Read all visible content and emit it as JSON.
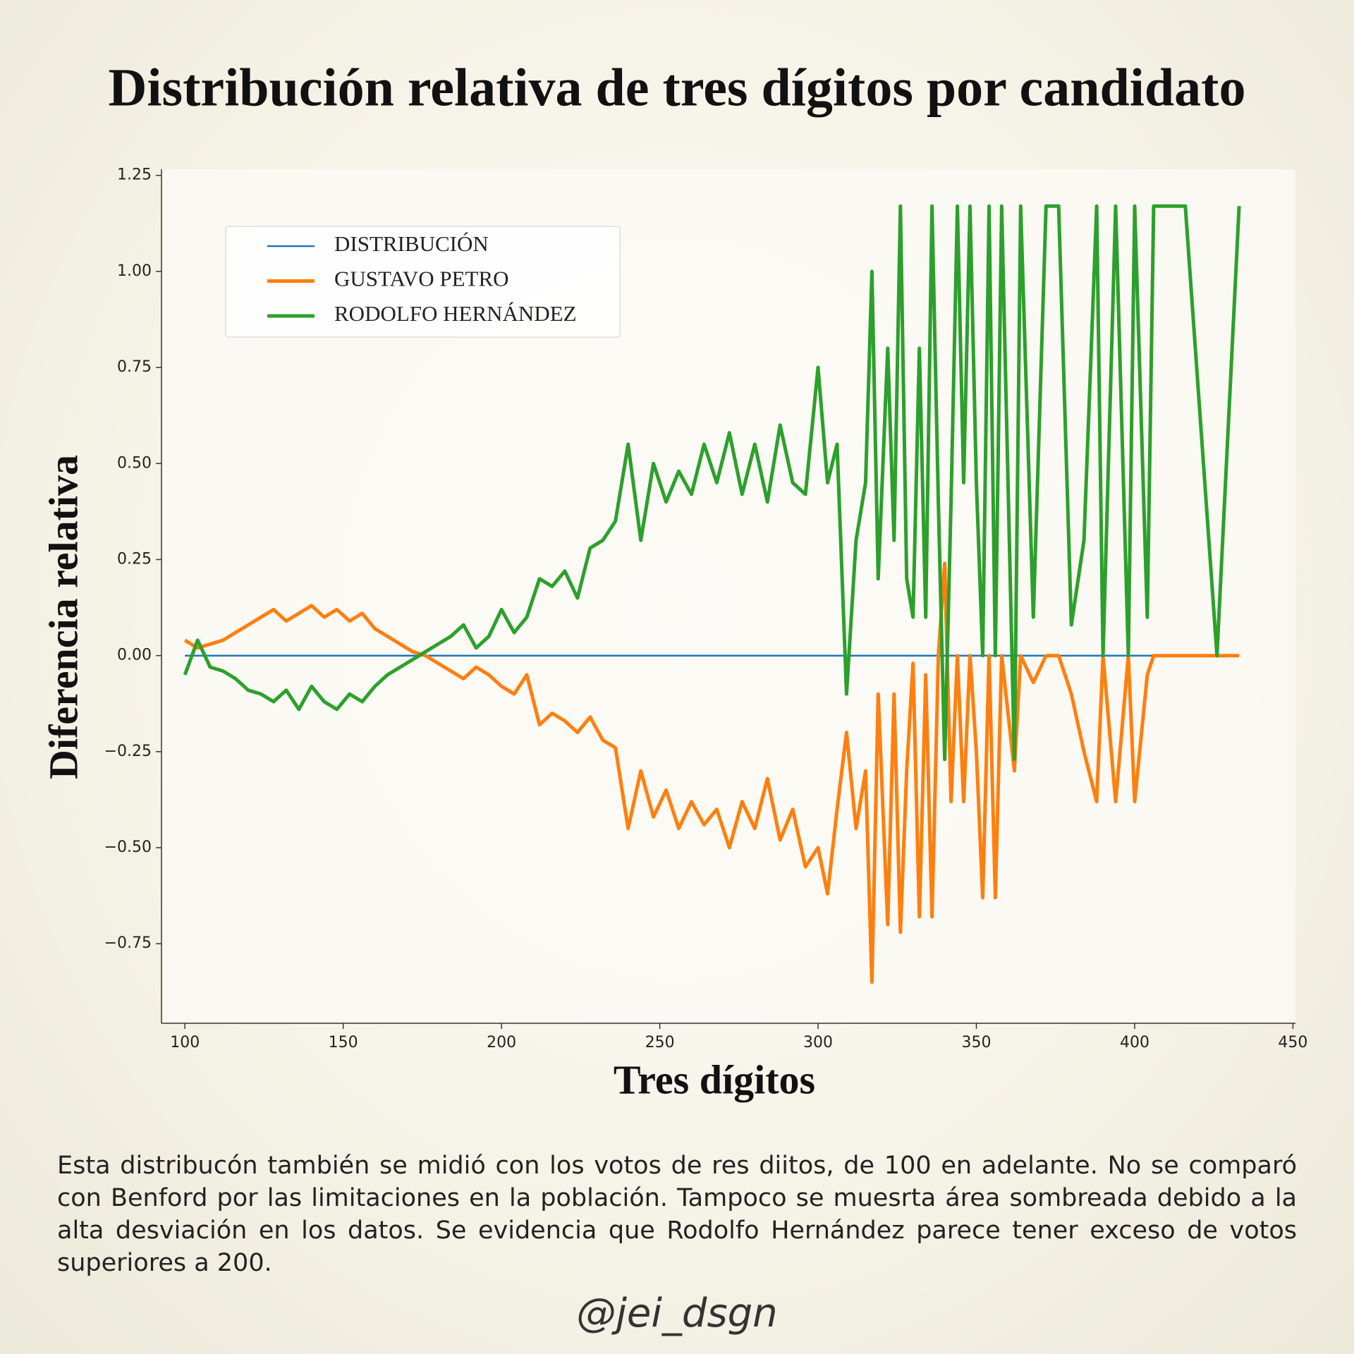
{
  "chart_data": {
    "type": "line",
    "title": "Distribución relativa de tres dígitos por candidato",
    "xlabel": "Tres dígitos",
    "ylabel": "Diferencia relativa",
    "x": [
      100,
      104,
      108,
      112,
      116,
      120,
      124,
      128,
      132,
      136,
      140,
      144,
      148,
      152,
      156,
      160,
      164,
      168,
      172,
      176,
      180,
      184,
      188,
      192,
      196,
      200,
      204,
      208,
      212,
      216,
      220,
      224,
      228,
      232,
      236,
      240,
      244,
      248,
      252,
      256,
      260,
      264,
      268,
      272,
      276,
      280,
      284,
      288,
      292,
      296,
      300,
      303,
      306,
      309,
      312,
      315,
      317,
      319,
      322,
      324,
      326,
      328,
      330,
      332,
      334,
      336,
      338,
      340,
      342,
      344,
      346,
      348,
      350,
      352,
      354,
      356,
      358,
      362,
      364,
      368,
      372,
      376,
      380,
      384,
      388,
      390,
      394,
      398,
      400,
      404,
      406,
      416,
      426,
      433
    ],
    "series": [
      {
        "name": "DISTRIBUCIÓN",
        "color": "#1f77b4",
        "values": [
          0,
          0,
          0,
          0,
          0,
          0,
          0,
          0,
          0,
          0,
          0,
          0,
          0,
          0,
          0,
          0,
          0,
          0,
          0,
          0,
          0,
          0,
          0,
          0,
          0,
          0,
          0,
          0,
          0,
          0,
          0,
          0,
          0,
          0,
          0,
          0,
          0,
          0,
          0,
          0,
          0,
          0,
          0,
          0,
          0,
          0,
          0,
          0,
          0,
          0,
          0,
          0,
          0,
          0,
          0,
          0,
          0,
          0,
          0,
          0,
          0,
          0,
          0,
          0,
          0,
          0,
          0,
          0,
          0,
          0,
          0,
          0,
          0,
          0,
          0,
          0,
          0,
          0,
          0,
          0,
          0,
          0,
          0,
          0,
          0,
          0,
          0,
          0,
          0,
          0,
          0,
          0,
          0,
          0
        ]
      },
      {
        "name": "GUSTAVO PETRO",
        "color": "#ff7f0e",
        "values": [
          0.04,
          0.02,
          0.03,
          0.04,
          0.06,
          0.08,
          0.1,
          0.12,
          0.09,
          0.11,
          0.13,
          0.1,
          0.12,
          0.09,
          0.11,
          0.07,
          0.05,
          0.03,
          0.01,
          0.0,
          -0.02,
          -0.04,
          -0.06,
          -0.03,
          -0.05,
          -0.08,
          -0.1,
          -0.05,
          -0.18,
          -0.15,
          -0.17,
          -0.2,
          -0.16,
          -0.22,
          -0.24,
          -0.45,
          -0.3,
          -0.42,
          -0.35,
          -0.45,
          -0.38,
          -0.44,
          -0.4,
          -0.5,
          -0.38,
          -0.45,
          -0.32,
          -0.48,
          -0.4,
          -0.55,
          -0.5,
          -0.62,
          -0.4,
          -0.2,
          -0.45,
          -0.3,
          -0.85,
          -0.1,
          -0.7,
          -0.1,
          -0.72,
          -0.3,
          -0.02,
          -0.68,
          -0.05,
          -0.68,
          0.0,
          0.24,
          -0.38,
          0.0,
          -0.38,
          0.0,
          -0.25,
          -0.63,
          0.0,
          -0.63,
          0.0,
          -0.3,
          0,
          -0.07,
          0,
          0,
          -0.1,
          -0.25,
          -0.38,
          0,
          -0.38,
          0,
          -0.38,
          -0.05,
          0,
          0,
          0,
          0
        ]
      },
      {
        "name": "RODOLFO HERNÁNDEZ",
        "color": "#2ca02c",
        "values": [
          -0.05,
          0.04,
          -0.03,
          -0.04,
          -0.06,
          -0.09,
          -0.1,
          -0.12,
          -0.09,
          -0.14,
          -0.08,
          -0.12,
          -0.14,
          -0.1,
          -0.12,
          -0.08,
          -0.05,
          -0.03,
          -0.01,
          0.01,
          0.03,
          0.05,
          0.08,
          0.02,
          0.05,
          0.12,
          0.06,
          0.1,
          0.2,
          0.18,
          0.22,
          0.15,
          0.28,
          0.3,
          0.35,
          0.55,
          0.3,
          0.5,
          0.4,
          0.48,
          0.42,
          0.55,
          0.45,
          0.58,
          0.42,
          0.55,
          0.4,
          0.6,
          0.45,
          0.42,
          0.75,
          0.45,
          0.55,
          -0.1,
          0.3,
          0.45,
          1.0,
          0.2,
          0.8,
          0.3,
          1.17,
          0.2,
          0.1,
          0.8,
          0.1,
          1.17,
          0.4,
          -0.27,
          0.4,
          1.17,
          0.45,
          1.17,
          0.45,
          0.0,
          1.17,
          0.0,
          1.17,
          -0.27,
          1.17,
          0.1,
          1.17,
          1.17,
          0.08,
          0.3,
          1.17,
          0.0,
          1.17,
          0.0,
          1.17,
          0.1,
          1.17,
          1.17,
          0.0,
          1.17
        ]
      }
    ],
    "xlim": [
      92.6,
      450.8
    ],
    "ylim": [
      -0.957,
      1.266
    ],
    "xticks": [
      100,
      150,
      200,
      250,
      300,
      350,
      400,
      450
    ],
    "yticks": [
      {
        "value": -0.75,
        "label": "−0.75"
      },
      {
        "value": -0.5,
        "label": "−0.50"
      },
      {
        "value": -0.25,
        "label": "−0.25"
      },
      {
        "value": 0,
        "label": "0.00"
      },
      {
        "value": 0.25,
        "label": "0.25"
      },
      {
        "value": 0.5,
        "label": "0.50"
      },
      {
        "value": 0.75,
        "label": "0.75"
      },
      {
        "value": 1,
        "label": "1.00"
      },
      {
        "value": 1.25,
        "label": "1.25"
      }
    ],
    "legend": "upper left",
    "grid": false
  },
  "caption": "Esta distribucón también se midió con los votos de res diitos, de 100 en adelante. No se comparó con Benford por las limitaciones en la población. Tampoco se muesrta área sombreada debido a la alta desviación en los datos. Se evidencia que Rodolfo Hernández parece tener exceso de votos superiores a 200.",
  "credit": "@jei_dsgn"
}
